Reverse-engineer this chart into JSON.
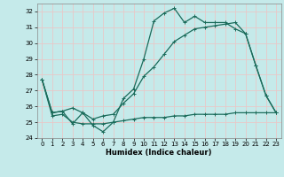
{
  "xlabel": "Humidex (Indice chaleur)",
  "bg_color": "#c5eaea",
  "grid_color": "#dff0f0",
  "line_color": "#1a6b5a",
  "xlim": [
    -0.5,
    23.5
  ],
  "ylim": [
    24,
    32.5
  ],
  "yticks": [
    24,
    25,
    26,
    27,
    28,
    29,
    30,
    31,
    32
  ],
  "xticks": [
    0,
    1,
    2,
    3,
    4,
    5,
    6,
    7,
    8,
    9,
    10,
    11,
    12,
    13,
    14,
    15,
    16,
    17,
    18,
    19,
    20,
    21,
    22,
    23
  ],
  "line1_x": [
    0,
    1,
    2,
    3,
    4,
    5,
    6,
    7,
    8,
    9,
    10,
    11,
    12,
    13,
    14,
    15,
    16,
    17,
    18,
    19,
    20,
    21,
    22,
    23
  ],
  "line1_y": [
    27.7,
    25.6,
    25.7,
    24.9,
    25.6,
    24.8,
    24.4,
    25.0,
    26.5,
    27.1,
    29.0,
    31.4,
    31.9,
    32.2,
    31.3,
    31.7,
    31.3,
    31.3,
    31.3,
    30.9,
    30.6,
    28.6,
    26.7,
    25.6
  ],
  "line2_x": [
    0,
    1,
    2,
    3,
    4,
    5,
    6,
    7,
    8,
    9,
    10,
    11,
    12,
    13,
    14,
    15,
    16,
    17,
    18,
    19,
    20,
    21,
    22,
    23
  ],
  "line2_y": [
    27.7,
    25.4,
    25.5,
    25.0,
    24.9,
    24.9,
    24.9,
    25.0,
    25.1,
    25.2,
    25.3,
    25.3,
    25.3,
    25.4,
    25.4,
    25.5,
    25.5,
    25.5,
    25.5,
    25.6,
    25.6,
    25.6,
    25.6,
    25.6
  ],
  "line3_x": [
    0,
    1,
    2,
    3,
    4,
    5,
    6,
    7,
    8,
    9,
    10,
    11,
    12,
    13,
    14,
    15,
    16,
    17,
    18,
    19,
    20,
    21,
    22,
    23
  ],
  "line3_y": [
    27.7,
    25.6,
    25.7,
    25.9,
    25.6,
    25.2,
    25.4,
    25.5,
    26.2,
    26.8,
    27.9,
    28.5,
    29.3,
    30.1,
    30.5,
    30.9,
    31.0,
    31.1,
    31.2,
    31.3,
    30.6,
    28.6,
    26.7,
    25.6
  ]
}
